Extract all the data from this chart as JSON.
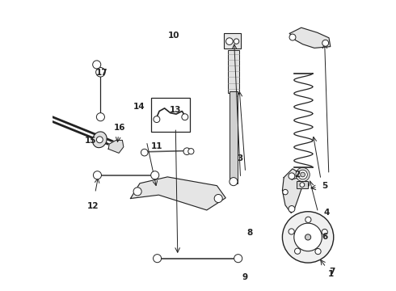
{
  "background_color": "#ffffff",
  "figsize": [
    4.9,
    3.6
  ],
  "dpi": 100,
  "gray": "#222222",
  "lgray": "#555555",
  "labels_data": [
    [
      1,
      0.958,
      0.058,
      0.915,
      0.115
    ],
    [
      2,
      0.84,
      0.4,
      0.815,
      0.375
    ],
    [
      3,
      0.645,
      0.455,
      0.625,
      0.45
    ],
    [
      4,
      0.942,
      0.27,
      0.895,
      0.54
    ],
    [
      5,
      0.935,
      0.36,
      0.878,
      0.352
    ],
    [
      6,
      0.935,
      0.185,
      0.882,
      0.388
    ],
    [
      7,
      0.96,
      0.068,
      0.935,
      0.86
    ],
    [
      8,
      0.678,
      0.2,
      0.642,
      0.695
    ],
    [
      9,
      0.662,
      0.048,
      0.624,
      0.858
    ],
    [
      10,
      0.418,
      0.878,
      0.43,
      0.122
    ],
    [
      11,
      0.358,
      0.498,
      0.348,
      0.476
    ],
    [
      12,
      0.138,
      0.292,
      0.158,
      0.398
    ],
    [
      13,
      0.422,
      0.622,
      0.422,
      0.608
    ],
    [
      14,
      0.298,
      0.632,
      0.358,
      0.352
    ],
    [
      15,
      0.132,
      0.518,
      0.158,
      0.518
    ],
    [
      16,
      0.23,
      0.562,
      0.222,
      0.502
    ],
    [
      17,
      0.17,
      0.75,
      0.17,
      0.738
    ]
  ]
}
